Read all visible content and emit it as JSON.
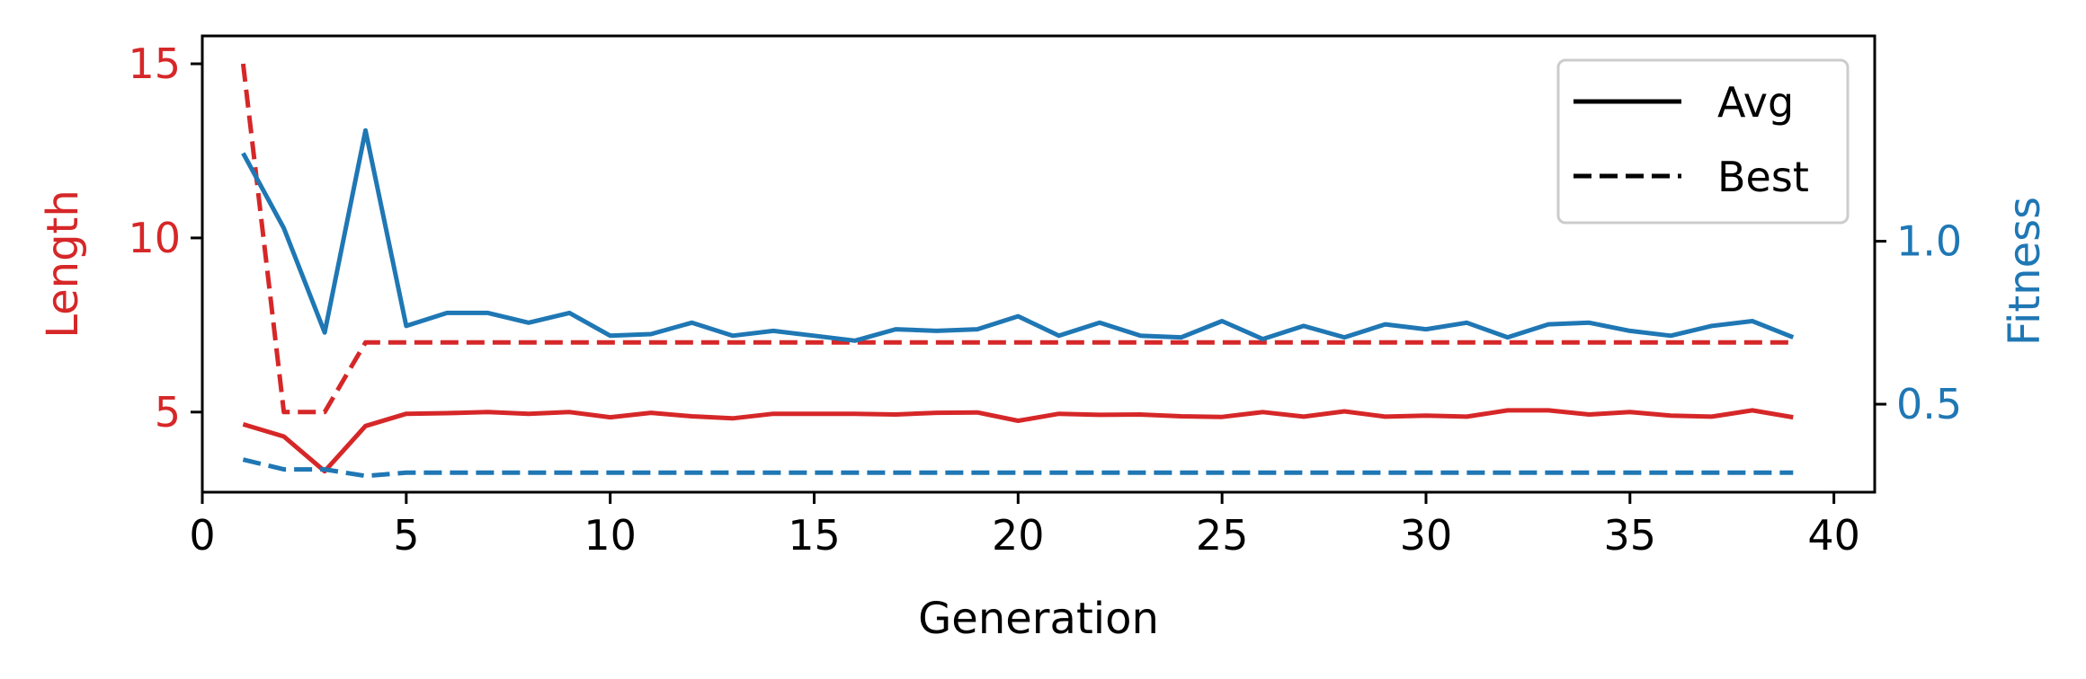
{
  "chart_data": {
    "type": "line",
    "xlabel": "Generation",
    "ylabel_left": "Length",
    "ylabel_right": "Fitness",
    "xlim": [
      0,
      41
    ],
    "ylim_left": [
      2.7,
      15.8
    ],
    "ylim_right": [
      0.23,
      1.63
    ],
    "x_ticks": [
      0,
      5,
      10,
      15,
      20,
      25,
      30,
      35,
      40
    ],
    "x_tick_labels": [
      "0",
      "5",
      "10",
      "15",
      "20",
      "25",
      "30",
      "35",
      "40"
    ],
    "y_left_ticks": [
      5,
      10,
      15
    ],
    "y_left_tick_labels": [
      "5",
      "10",
      "15"
    ],
    "y_right_ticks": [
      0.5,
      1.0
    ],
    "y_right_tick_labels": [
      "0.5",
      "1.0"
    ],
    "legend": {
      "placement": "upper right",
      "entries": [
        {
          "label": "Avg",
          "style": "solid"
        },
        {
          "label": "Best",
          "style": "dashed"
        }
      ]
    },
    "colors": {
      "length": "#d62728",
      "fitness": "#1f77b4",
      "axes": "#000000"
    },
    "x": [
      1,
      2,
      3,
      4,
      5,
      6,
      7,
      8,
      9,
      10,
      11,
      12,
      13,
      14,
      15,
      16,
      17,
      18,
      19,
      20,
      21,
      22,
      23,
      24,
      25,
      26,
      27,
      28,
      29,
      30,
      31,
      32,
      33,
      34,
      35,
      36,
      37,
      38,
      39
    ],
    "series": [
      {
        "axis": "left",
        "color": "#d62728",
        "style": "solid",
        "legend": "Avg",
        "values": [
          4.65,
          4.3,
          3.3,
          4.6,
          4.95,
          4.97,
          5.0,
          4.95,
          5.0,
          4.85,
          4.98,
          4.88,
          4.82,
          4.95,
          4.95,
          4.95,
          4.93,
          4.98,
          4.99,
          4.75,
          4.95,
          4.92,
          4.93,
          4.88,
          4.86,
          5.0,
          4.87,
          5.02,
          4.87,
          4.9,
          4.87,
          5.05,
          5.05,
          4.93,
          5.0,
          4.9,
          4.87,
          5.05,
          4.85
        ]
      },
      {
        "axis": "left",
        "color": "#d62728",
        "style": "dashed",
        "legend": "Best",
        "values": [
          15.0,
          5.0,
          5.0,
          7.0,
          7.0,
          7.0,
          7.0,
          7.0,
          7.0,
          7.0,
          7.0,
          7.0,
          7.0,
          7.0,
          7.0,
          7.0,
          7.0,
          7.0,
          7.0,
          7.0,
          7.0,
          7.0,
          7.0,
          7.0,
          7.0,
          7.0,
          7.0,
          7.0,
          7.0,
          7.0,
          7.0,
          7.0,
          7.0,
          7.0,
          7.0,
          7.0,
          7.0,
          7.0,
          7.0
        ]
      },
      {
        "axis": "right",
        "color": "#1f77b4",
        "style": "solid",
        "legend": "Avg",
        "values": [
          1.27,
          1.04,
          0.72,
          1.34,
          0.74,
          0.78,
          0.78,
          0.75,
          0.78,
          0.71,
          0.715,
          0.75,
          0.71,
          0.725,
          0.71,
          0.695,
          0.73,
          0.725,
          0.73,
          0.77,
          0.71,
          0.75,
          0.71,
          0.705,
          0.755,
          0.7,
          0.74,
          0.705,
          0.745,
          0.73,
          0.75,
          0.705,
          0.745,
          0.75,
          0.725,
          0.71,
          0.74,
          0.755,
          0.705
        ]
      },
      {
        "axis": "right",
        "color": "#1f77b4",
        "style": "dashed",
        "legend": "Best",
        "values": [
          0.33,
          0.3,
          0.3,
          0.28,
          0.29,
          0.29,
          0.29,
          0.29,
          0.29,
          0.29,
          0.29,
          0.29,
          0.29,
          0.29,
          0.29,
          0.29,
          0.29,
          0.29,
          0.29,
          0.29,
          0.29,
          0.29,
          0.29,
          0.29,
          0.29,
          0.29,
          0.29,
          0.29,
          0.29,
          0.29,
          0.29,
          0.29,
          0.29,
          0.29,
          0.29,
          0.29,
          0.29,
          0.29,
          0.29
        ]
      }
    ]
  }
}
